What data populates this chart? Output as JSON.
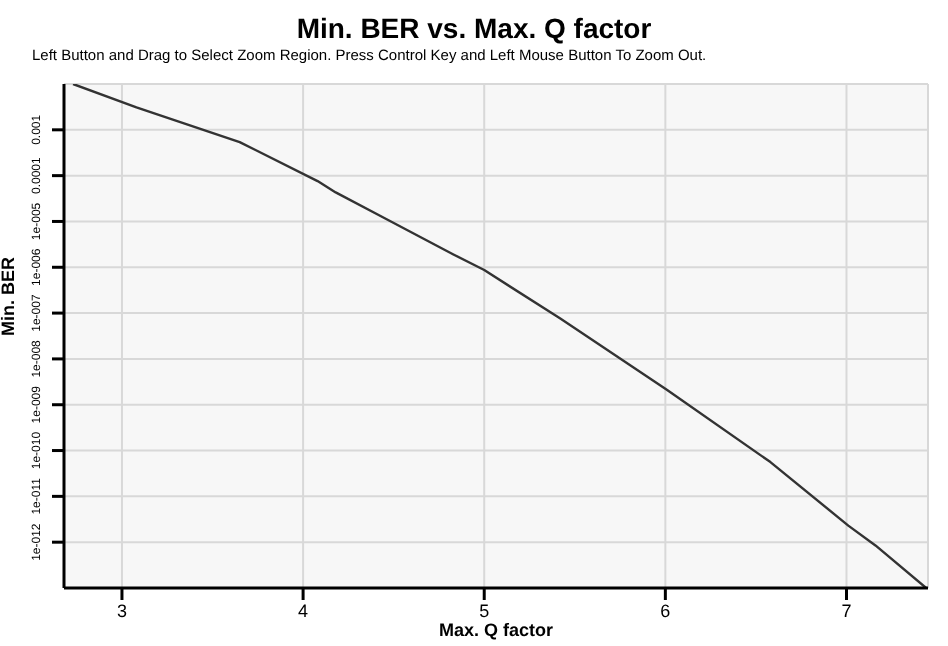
{
  "chart_data": {
    "type": "line",
    "title": "Min. BER vs. Max. Q factor",
    "subtitle": "Left Button and Drag to Select Zoom Region. Press Control Key and Left Mouse Button To Zoom Out.",
    "xlabel": "Max. Q factor",
    "ylabel": "Min. BER",
    "x": [
      2.73,
      3.08,
      3.65,
      4.08,
      4.18,
      4.43,
      4.83,
      5.0,
      5.42,
      6.01,
      6.58,
      7.01,
      7.16,
      7.44
    ],
    "series": [
      {
        "color": "#333333",
        "values": [
          0.01,
          0.0031,
          0.00054,
          7.6e-05,
          4.3e-05,
          1.3e-05,
          1.9e-06,
          8.7e-07,
          7.6e-08,
          2.1e-09,
          5.6e-11,
          2.3e-12,
          8.5e-13,
          1e-13
        ]
      }
    ],
    "log": "y",
    "xlim": [
      2.68,
      7.45
    ],
    "xticks": [
      3,
      4,
      5,
      6,
      7
    ],
    "ylim": [
      1e-13,
      0.01
    ],
    "yticks": [
      {
        "value": 0.001,
        "label": "0.001"
      },
      {
        "value": 0.0001,
        "label": "0.0001"
      },
      {
        "value": 1e-05,
        "label": "1e-005"
      },
      {
        "value": 1e-06,
        "label": "1e-006"
      },
      {
        "value": 1e-07,
        "label": "1e-007"
      },
      {
        "value": 1e-08,
        "label": "1e-008"
      },
      {
        "value": 1e-09,
        "label": "1e-009"
      },
      {
        "value": 1e-10,
        "label": "1e-010"
      },
      {
        "value": 1e-11,
        "label": "1e-011"
      },
      {
        "value": 1e-12,
        "label": "1e-012"
      }
    ],
    "grid": true,
    "legend": false,
    "marker": "none",
    "line_style": "solid"
  }
}
